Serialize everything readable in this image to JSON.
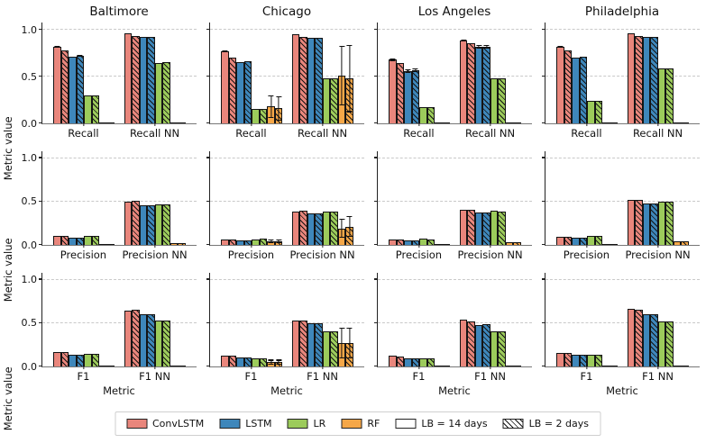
{
  "chart_data": {
    "type": "bar",
    "title": "",
    "ylabel": "Metric value",
    "xlabel": "Metric",
    "yticks": [
      0.0,
      0.5,
      1.0
    ],
    "ylim": [
      0,
      1.08
    ],
    "grid_dashed_at": [
      0.5,
      1.0
    ],
    "cities": [
      "Baltimore",
      "Chicago",
      "Los Angeles",
      "Philadelphia"
    ],
    "models": [
      "ConvLSTM",
      "LSTM",
      "LR",
      "RF"
    ],
    "model_colors": [
      "#E9867C",
      "#3E87BB",
      "#9CCB5B",
      "#F5A748"
    ],
    "lookbacks": [
      "LB = 14 days",
      "LB = 2 days"
    ],
    "legend_items": [
      {
        "label": "ConvLSTM",
        "type": "fill",
        "color": "#E9867C"
      },
      {
        "label": "LSTM",
        "type": "fill",
        "color": "#3E87BB"
      },
      {
        "label": "LR",
        "type": "fill",
        "color": "#9CCB5B"
      },
      {
        "label": "RF",
        "type": "fill",
        "color": "#F5A748"
      },
      {
        "label": "LB = 14 days",
        "type": "solid-sample",
        "color": "#ffffff"
      },
      {
        "label": "LB = 2 days",
        "type": "hatch-sample",
        "color": "#ffffff"
      }
    ],
    "panels": [
      {
        "city": "Baltimore",
        "groups": [
          {
            "label": "Recall",
            "values": [
              [
                0.82,
                0.78
              ],
              [
                0.71,
                0.72
              ],
              [
                0.3,
                0.3
              ],
              [
                0.0,
                0.0
              ]
            ],
            "errors": [
              [
                0.01,
                0
              ],
              [
                0,
                0.01
              ],
              [
                0,
                0
              ],
              [
                0,
                0
              ]
            ]
          },
          {
            "label": "Recall NN",
            "values": [
              [
                0.96,
                0.94
              ],
              [
                0.93,
                0.93
              ],
              [
                0.65,
                0.66
              ],
              [
                0.0,
                0.0
              ]
            ],
            "errors": [
              [
                0,
                0
              ],
              [
                0,
                0
              ],
              [
                0,
                0
              ],
              [
                0,
                0
              ]
            ]
          }
        ]
      },
      {
        "city": "Chicago",
        "groups": [
          {
            "label": "Recall",
            "values": [
              [
                0.77,
                0.7
              ],
              [
                0.66,
                0.67
              ],
              [
                0.15,
                0.15
              ],
              [
                0.18,
                0.16
              ]
            ],
            "errors": [
              [
                0.01,
                0
              ],
              [
                0,
                0
              ],
              [
                0,
                0
              ],
              [
                0.12,
                0.13
              ]
            ]
          },
          {
            "label": "Recall NN",
            "values": [
              [
                0.95,
                0.93
              ],
              [
                0.92,
                0.92
              ],
              [
                0.48,
                0.48
              ],
              [
                0.51,
                0.48
              ]
            ],
            "errors": [
              [
                0,
                0
              ],
              [
                0,
                0
              ],
              [
                0,
                0
              ],
              [
                0.32,
                0.36
              ]
            ]
          }
        ]
      },
      {
        "city": "Los Angeles",
        "groups": [
          {
            "label": "Recall",
            "values": [
              [
                0.68,
                0.65
              ],
              [
                0.56,
                0.57
              ],
              [
                0.17,
                0.17
              ],
              [
                0.0,
                0.0
              ]
            ],
            "errors": [
              [
                0.01,
                0
              ],
              [
                0.02,
                0.02
              ],
              [
                0,
                0
              ],
              [
                0,
                0
              ]
            ]
          },
          {
            "label": "Recall NN",
            "values": [
              [
                0.89,
                0.86
              ],
              [
                0.82,
                0.82
              ],
              [
                0.48,
                0.48
              ],
              [
                0.01,
                0.01
              ]
            ],
            "errors": [
              [
                0.01,
                0
              ],
              [
                0.02,
                0.02
              ],
              [
                0,
                0
              ],
              [
                0,
                0
              ]
            ]
          }
        ]
      },
      {
        "city": "Philadelphia",
        "groups": [
          {
            "label": "Recall",
            "values": [
              [
                0.82,
                0.78
              ],
              [
                0.7,
                0.71
              ],
              [
                0.24,
                0.24
              ],
              [
                0.0,
                0.0
              ]
            ],
            "errors": [
              [
                0.01,
                0
              ],
              [
                0,
                0
              ],
              [
                0,
                0
              ],
              [
                0,
                0
              ]
            ]
          },
          {
            "label": "Recall NN",
            "values": [
              [
                0.96,
                0.94
              ],
              [
                0.93,
                0.93
              ],
              [
                0.59,
                0.59
              ],
              [
                0.01,
                0.01
              ]
            ],
            "errors": [
              [
                0,
                0
              ],
              [
                0,
                0
              ],
              [
                0,
                0
              ],
              [
                0,
                0
              ]
            ]
          }
        ]
      },
      {
        "city": "Baltimore",
        "groups": [
          {
            "label": "Precision",
            "values": [
              [
                0.1,
                0.1
              ],
              [
                0.08,
                0.08
              ],
              [
                0.1,
                0.1
              ],
              [
                0.01,
                0.01
              ]
            ],
            "errors": [
              [
                0,
                0
              ],
              [
                0,
                0
              ],
              [
                0,
                0
              ],
              [
                0,
                0
              ]
            ]
          },
          {
            "label": "Precision NN",
            "values": [
              [
                0.5,
                0.51
              ],
              [
                0.46,
                0.46
              ],
              [
                0.47,
                0.47
              ],
              [
                0.02,
                0.02
              ]
            ],
            "errors": [
              [
                0,
                0
              ],
              [
                0,
                0
              ],
              [
                0,
                0
              ],
              [
                0,
                0
              ]
            ]
          }
        ]
      },
      {
        "city": "Chicago",
        "groups": [
          {
            "label": "Precision",
            "values": [
              [
                0.06,
                0.06
              ],
              [
                0.05,
                0.05
              ],
              [
                0.06,
                0.07
              ],
              [
                0.04,
                0.04
              ]
            ],
            "errors": [
              [
                0,
                0
              ],
              [
                0,
                0
              ],
              [
                0,
                0
              ],
              [
                0.02,
                0.02
              ]
            ]
          },
          {
            "label": "Precision NN",
            "values": [
              [
                0.38,
                0.39
              ],
              [
                0.36,
                0.36
              ],
              [
                0.38,
                0.38
              ],
              [
                0.19,
                0.21
              ]
            ],
            "errors": [
              [
                0,
                0
              ],
              [
                0,
                0
              ],
              [
                0,
                0
              ],
              [
                0.11,
                0.12
              ]
            ]
          }
        ]
      },
      {
        "city": "Los Angeles",
        "groups": [
          {
            "label": "Precision",
            "values": [
              [
                0.06,
                0.06
              ],
              [
                0.05,
                0.05
              ],
              [
                0.07,
                0.06
              ],
              [
                0.01,
                0.01
              ]
            ],
            "errors": [
              [
                0,
                0
              ],
              [
                0,
                0
              ],
              [
                0,
                0
              ],
              [
                0,
                0
              ]
            ]
          },
          {
            "label": "Precision NN",
            "values": [
              [
                0.41,
                0.4
              ],
              [
                0.37,
                0.37
              ],
              [
                0.39,
                0.38
              ],
              [
                0.03,
                0.03
              ]
            ],
            "errors": [
              [
                0,
                0
              ],
              [
                0,
                0
              ],
              [
                0,
                0
              ],
              [
                0,
                0
              ]
            ]
          }
        ]
      },
      {
        "city": "Philadelphia",
        "groups": [
          {
            "label": "Precision",
            "values": [
              [
                0.09,
                0.09
              ],
              [
                0.08,
                0.08
              ],
              [
                0.1,
                0.1
              ],
              [
                0.01,
                0.01
              ]
            ],
            "errors": [
              [
                0,
                0
              ],
              [
                0,
                0
              ],
              [
                0,
                0
              ],
              [
                0,
                0
              ]
            ]
          },
          {
            "label": "Precision NN",
            "values": [
              [
                0.52,
                0.52
              ],
              [
                0.48,
                0.48
              ],
              [
                0.5,
                0.5
              ],
              [
                0.04,
                0.04
              ]
            ],
            "errors": [
              [
                0,
                0
              ],
              [
                0,
                0
              ],
              [
                0,
                0
              ],
              [
                0,
                0
              ]
            ]
          }
        ]
      },
      {
        "city": "Baltimore",
        "groups": [
          {
            "label": "F1",
            "values": [
              [
                0.17,
                0.17
              ],
              [
                0.14,
                0.14
              ],
              [
                0.15,
                0.15
              ],
              [
                0.01,
                0.01
              ]
            ],
            "errors": [
              [
                0,
                0
              ],
              [
                0,
                0
              ],
              [
                0,
                0
              ],
              [
                0,
                0
              ]
            ]
          },
          {
            "label": "F1 NN",
            "values": [
              [
                0.64,
                0.65
              ],
              [
                0.6,
                0.6
              ],
              [
                0.53,
                0.53
              ],
              [
                0.01,
                0.01
              ]
            ],
            "errors": [
              [
                0,
                0
              ],
              [
                0,
                0
              ],
              [
                0,
                0
              ],
              [
                0,
                0
              ]
            ]
          }
        ]
      },
      {
        "city": "Chicago",
        "groups": [
          {
            "label": "F1",
            "values": [
              [
                0.12,
                0.12
              ],
              [
                0.1,
                0.1
              ],
              [
                0.09,
                0.09
              ],
              [
                0.05,
                0.05
              ]
            ],
            "errors": [
              [
                0,
                0
              ],
              [
                0,
                0
              ],
              [
                0,
                0
              ],
              [
                0.03,
                0.03
              ]
            ]
          },
          {
            "label": "F1 NN",
            "values": [
              [
                0.53,
                0.53
              ],
              [
                0.5,
                0.5
              ],
              [
                0.41,
                0.41
              ],
              [
                0.27,
                0.27
              ]
            ],
            "errors": [
              [
                0,
                0
              ],
              [
                0,
                0
              ],
              [
                0,
                0
              ],
              [
                0.18,
                0.18
              ]
            ]
          }
        ]
      },
      {
        "city": "Los Angeles",
        "groups": [
          {
            "label": "F1",
            "values": [
              [
                0.12,
                0.11
              ],
              [
                0.09,
                0.09
              ],
              [
                0.09,
                0.09
              ],
              [
                0.0,
                0.0
              ]
            ],
            "errors": [
              [
                0,
                0
              ],
              [
                0,
                0
              ],
              [
                0,
                0
              ],
              [
                0,
                0
              ]
            ]
          },
          {
            "label": "F1 NN",
            "values": [
              [
                0.54,
                0.52
              ],
              [
                0.48,
                0.49
              ],
              [
                0.41,
                0.41
              ],
              [
                0.01,
                0.01
              ]
            ],
            "errors": [
              [
                0,
                0
              ],
              [
                0,
                0
              ],
              [
                0,
                0
              ],
              [
                0,
                0
              ]
            ]
          }
        ]
      },
      {
        "city": "Philadelphia",
        "groups": [
          {
            "label": "F1",
            "values": [
              [
                0.16,
                0.16
              ],
              [
                0.13,
                0.13
              ],
              [
                0.13,
                0.13
              ],
              [
                0.01,
                0.01
              ]
            ],
            "errors": [
              [
                0,
                0
              ],
              [
                0,
                0
              ],
              [
                0,
                0
              ],
              [
                0,
                0
              ]
            ]
          },
          {
            "label": "F1 NN",
            "values": [
              [
                0.66,
                0.65
              ],
              [
                0.6,
                0.6
              ],
              [
                0.52,
                0.52
              ],
              [
                0.01,
                0.01
              ]
            ],
            "errors": [
              [
                0,
                0
              ],
              [
                0,
                0
              ],
              [
                0,
                0
              ],
              [
                0,
                0
              ]
            ]
          }
        ]
      }
    ]
  }
}
